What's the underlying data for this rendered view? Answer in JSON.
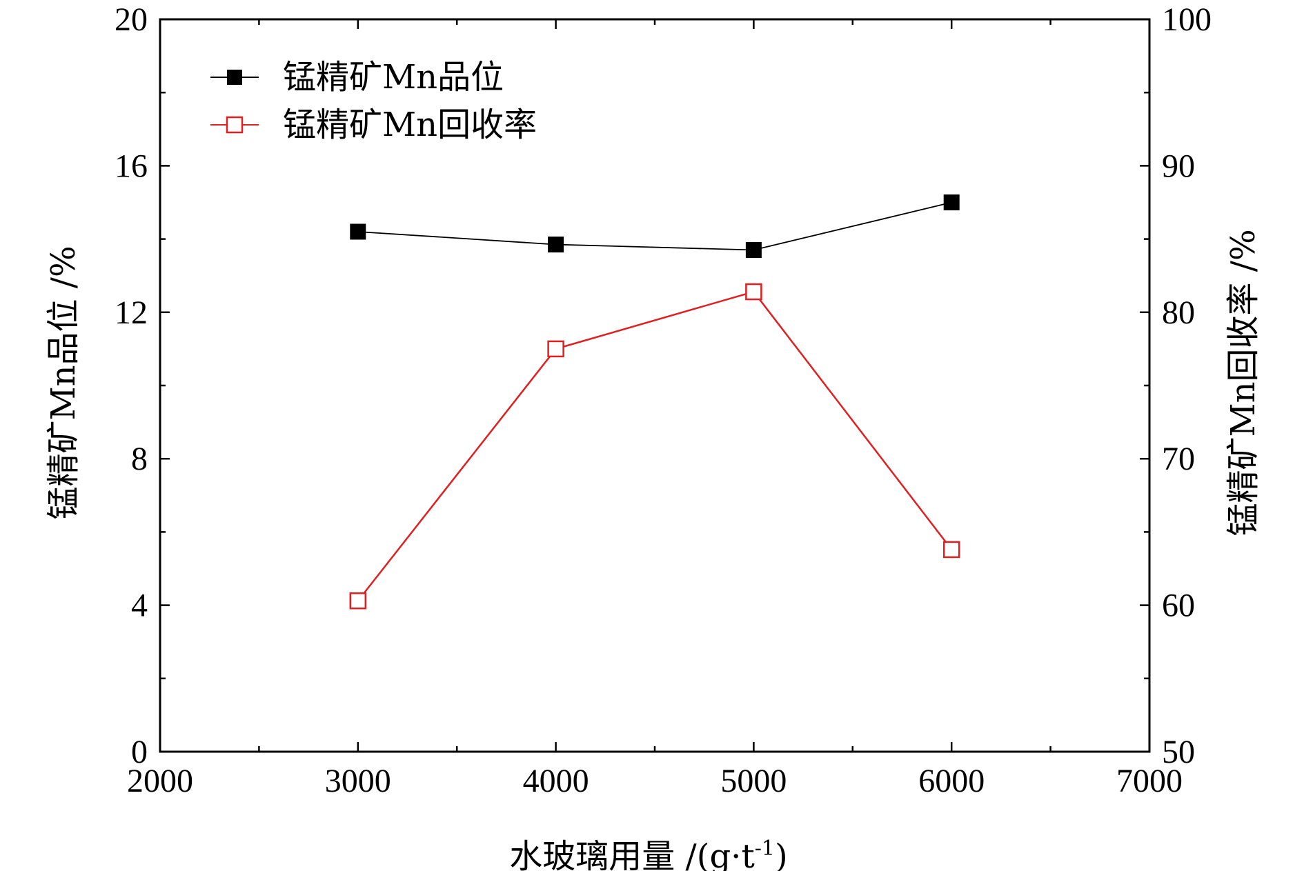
{
  "chart_data": {
    "type": "line",
    "xlabel": "水玻璃用量 /(g·t",
    "xlabel_sup": "-1",
    "xlabel_tail": ")",
    "ylabel_left": "锰精矿Mn品位 /%",
    "ylabel_right": "锰精矿Mn回收率 /%",
    "xlim": [
      2000,
      7000
    ],
    "ylim_left": [
      0,
      20
    ],
    "ylim_right": [
      50,
      100
    ],
    "x_ticks": [
      2000,
      3000,
      4000,
      5000,
      6000,
      7000
    ],
    "y_left_ticks": [
      0,
      4,
      8,
      12,
      16,
      20
    ],
    "y_right_ticks": [
      50,
      60,
      70,
      80,
      90,
      100
    ],
    "x": [
      3000,
      4000,
      5000,
      6000
    ],
    "series": [
      {
        "name": "锰精矿Mn品位",
        "axis": "left",
        "values": [
          14.2,
          13.85,
          13.7,
          15.0
        ],
        "color": "#000000",
        "marker": "filled-square"
      },
      {
        "name": "锰精矿Mn回收率",
        "axis": "right",
        "values": [
          60.3,
          77.5,
          81.4,
          63.8
        ],
        "color": "#e02020",
        "marker": "open-square"
      }
    ],
    "legend_position": "top-left",
    "grid": false
  }
}
